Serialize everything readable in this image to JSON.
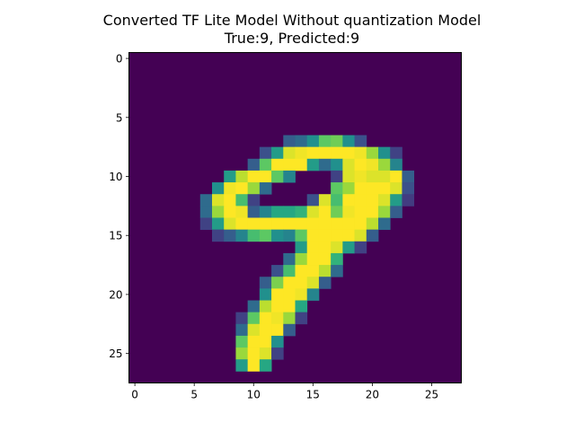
{
  "chart_data": {
    "type": "heatmap",
    "title": "Converted TF Lite Model Without quantization Model",
    "subtitle": "True:9, Predicted:9",
    "xlabel": "",
    "ylabel": "",
    "xlim": [
      -0.5,
      27.5
    ],
    "ylim": [
      27.5,
      -0.5
    ],
    "xticks": [
      0,
      5,
      10,
      15,
      20,
      25
    ],
    "yticks": [
      0,
      5,
      10,
      15,
      20,
      25
    ],
    "colormap": "viridis",
    "value_range": [
      0,
      1
    ],
    "grid": false,
    "background_color": "#440154",
    "nonzero_pixels": [
      [
        7,
        13,
        0.3
      ],
      [
        7,
        14,
        0.35
      ],
      [
        7,
        15,
        0.5
      ],
      [
        7,
        16,
        0.75
      ],
      [
        7,
        17,
        0.78
      ],
      [
        7,
        18,
        0.5
      ],
      [
        7,
        19,
        0.25
      ],
      [
        8,
        11,
        0.25
      ],
      [
        8,
        12,
        0.55
      ],
      [
        8,
        13,
        0.95
      ],
      [
        8,
        14,
        0.98
      ],
      [
        8,
        15,
        1.0
      ],
      [
        8,
        16,
        1.0
      ],
      [
        8,
        17,
        1.0
      ],
      [
        8,
        18,
        1.0
      ],
      [
        8,
        19,
        0.98
      ],
      [
        8,
        20,
        0.85
      ],
      [
        8,
        21,
        0.5
      ],
      [
        8,
        22,
        0.2
      ],
      [
        9,
        10,
        0.3
      ],
      [
        9,
        11,
        0.75
      ],
      [
        9,
        12,
        1.0
      ],
      [
        9,
        13,
        1.0
      ],
      [
        9,
        14,
        1.0
      ],
      [
        9,
        15,
        0.55
      ],
      [
        9,
        16,
        0.35
      ],
      [
        9,
        17,
        0.5
      ],
      [
        9,
        18,
        0.95
      ],
      [
        9,
        19,
        1.0
      ],
      [
        9,
        20,
        0.98
      ],
      [
        9,
        21,
        0.85
      ],
      [
        9,
        22,
        0.45
      ],
      [
        10,
        8,
        0.55
      ],
      [
        10,
        9,
        0.9
      ],
      [
        10,
        10,
        1.0
      ],
      [
        10,
        11,
        1.0
      ],
      [
        10,
        12,
        0.75
      ],
      [
        10,
        13,
        0.45
      ],
      [
        10,
        17,
        0.2
      ],
      [
        10,
        18,
        0.95
      ],
      [
        10,
        19,
        0.98
      ],
      [
        10,
        20,
        0.95
      ],
      [
        10,
        21,
        0.95
      ],
      [
        10,
        22,
        1.0
      ],
      [
        10,
        23,
        0.3
      ],
      [
        11,
        7,
        0.5
      ],
      [
        11,
        8,
        0.98
      ],
      [
        11,
        9,
        1.0
      ],
      [
        11,
        10,
        0.85
      ],
      [
        11,
        11,
        0.35
      ],
      [
        11,
        17,
        0.75
      ],
      [
        11,
        18,
        0.85
      ],
      [
        11,
        19,
        1.0
      ],
      [
        11,
        20,
        1.0
      ],
      [
        11,
        21,
        1.0
      ],
      [
        11,
        22,
        0.95
      ],
      [
        11,
        23,
        0.25
      ],
      [
        12,
        6,
        0.35
      ],
      [
        12,
        7,
        0.95
      ],
      [
        12,
        8,
        1.0
      ],
      [
        12,
        9,
        0.7
      ],
      [
        12,
        10,
        0.2
      ],
      [
        12,
        15,
        0.25
      ],
      [
        12,
        16,
        0.95
      ],
      [
        12,
        17,
        0.7
      ],
      [
        12,
        18,
        1.0
      ],
      [
        12,
        19,
        1.0
      ],
      [
        12,
        20,
        1.0
      ],
      [
        12,
        21,
        0.95
      ],
      [
        12,
        22,
        0.55
      ],
      [
        12,
        23,
        0.18
      ],
      [
        13,
        6,
        0.35
      ],
      [
        13,
        7,
        0.85
      ],
      [
        13,
        8,
        1.0
      ],
      [
        13,
        9,
        0.98
      ],
      [
        13,
        10,
        0.3
      ],
      [
        13,
        11,
        0.45
      ],
      [
        13,
        12,
        0.6
      ],
      [
        13,
        13,
        0.6
      ],
      [
        13,
        14,
        0.65
      ],
      [
        13,
        15,
        0.95
      ],
      [
        13,
        16,
        1.0
      ],
      [
        13,
        17,
        0.78
      ],
      [
        13,
        18,
        0.98
      ],
      [
        13,
        19,
        1.0
      ],
      [
        13,
        20,
        1.0
      ],
      [
        13,
        21,
        0.85
      ],
      [
        13,
        22,
        0.3
      ],
      [
        14,
        6,
        0.2
      ],
      [
        14,
        7,
        0.55
      ],
      [
        14,
        8,
        0.95
      ],
      [
        14,
        9,
        1.0
      ],
      [
        14,
        10,
        1.0
      ],
      [
        14,
        11,
        1.0
      ],
      [
        14,
        12,
        1.0
      ],
      [
        14,
        13,
        1.0
      ],
      [
        14,
        14,
        1.0
      ],
      [
        14,
        15,
        1.0
      ],
      [
        14,
        16,
        1.0
      ],
      [
        14,
        17,
        1.0
      ],
      [
        14,
        18,
        1.0
      ],
      [
        14,
        19,
        1.0
      ],
      [
        14,
        20,
        0.9
      ],
      [
        14,
        21,
        0.35
      ],
      [
        15,
        7,
        0.2
      ],
      [
        15,
        8,
        0.3
      ],
      [
        15,
        9,
        0.45
      ],
      [
        15,
        10,
        0.7
      ],
      [
        15,
        11,
        0.75
      ],
      [
        15,
        12,
        0.5
      ],
      [
        15,
        13,
        0.45
      ],
      [
        15,
        14,
        0.75
      ],
      [
        15,
        15,
        1.0
      ],
      [
        15,
        16,
        1.0
      ],
      [
        15,
        17,
        1.0
      ],
      [
        15,
        18,
        1.0
      ],
      [
        15,
        19,
        0.95
      ],
      [
        15,
        20,
        0.3
      ],
      [
        16,
        14,
        0.55
      ],
      [
        16,
        15,
        1.0
      ],
      [
        16,
        16,
        1.0
      ],
      [
        16,
        17,
        0.95
      ],
      [
        16,
        18,
        0.55
      ],
      [
        16,
        19,
        0.2
      ],
      [
        17,
        13,
        0.35
      ],
      [
        17,
        14,
        0.85
      ],
      [
        17,
        15,
        1.0
      ],
      [
        17,
        16,
        1.0
      ],
      [
        17,
        17,
        0.65
      ],
      [
        18,
        12,
        0.25
      ],
      [
        18,
        13,
        0.7
      ],
      [
        18,
        14,
        1.0
      ],
      [
        18,
        15,
        1.0
      ],
      [
        18,
        16,
        0.9
      ],
      [
        18,
        17,
        0.35
      ],
      [
        19,
        11,
        0.3
      ],
      [
        19,
        12,
        0.8
      ],
      [
        19,
        13,
        1.0
      ],
      [
        19,
        14,
        1.0
      ],
      [
        19,
        15,
        0.95
      ],
      [
        19,
        16,
        0.3
      ],
      [
        20,
        11,
        0.5
      ],
      [
        20,
        12,
        1.0
      ],
      [
        20,
        13,
        1.0
      ],
      [
        20,
        14,
        0.98
      ],
      [
        20,
        15,
        0.45
      ],
      [
        21,
        10,
        0.35
      ],
      [
        21,
        11,
        0.9
      ],
      [
        21,
        12,
        1.0
      ],
      [
        21,
        13,
        1.0
      ],
      [
        21,
        14,
        0.6
      ],
      [
        22,
        9,
        0.2
      ],
      [
        22,
        10,
        0.75
      ],
      [
        22,
        11,
        1.0
      ],
      [
        22,
        12,
        0.98
      ],
      [
        22,
        13,
        0.85
      ],
      [
        22,
        14,
        0.2
      ],
      [
        23,
        9,
        0.35
      ],
      [
        23,
        10,
        0.95
      ],
      [
        23,
        11,
        1.0
      ],
      [
        23,
        12,
        1.0
      ],
      [
        23,
        13,
        0.3
      ],
      [
        24,
        9,
        0.75
      ],
      [
        24,
        10,
        1.0
      ],
      [
        24,
        11,
        1.0
      ],
      [
        24,
        12,
        0.5
      ],
      [
        25,
        9,
        0.85
      ],
      [
        25,
        10,
        1.0
      ],
      [
        25,
        11,
        0.95
      ],
      [
        25,
        12,
        0.2
      ],
      [
        26,
        9,
        0.55
      ],
      [
        26,
        10,
        1.0
      ],
      [
        26,
        11,
        0.6
      ]
    ]
  }
}
